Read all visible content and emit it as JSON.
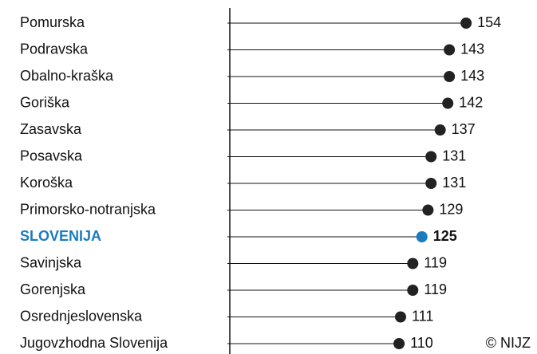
{
  "chart_data": {
    "type": "lollipop",
    "orientation": "horizontal",
    "categories": [
      "Pomurska",
      "Podravska",
      "Obalno-kraška",
      "Goriška",
      "Zasavska",
      "Posavska",
      "Koroška",
      "Primorsko-notranjska",
      "SLOVENIJA",
      "Savinjska",
      "Gorenjska",
      "Osrednjeslovenska",
      "Jugovzhodna Slovenija"
    ],
    "values": [
      154,
      143,
      143,
      142,
      137,
      131,
      131,
      129,
      125,
      119,
      119,
      111,
      110
    ],
    "color": "#222222",
    "highlight_index": 8,
    "highlight_color": "#1a7bbf",
    "xlim": [
      0,
      200
    ],
    "source": "© NIJZ"
  }
}
